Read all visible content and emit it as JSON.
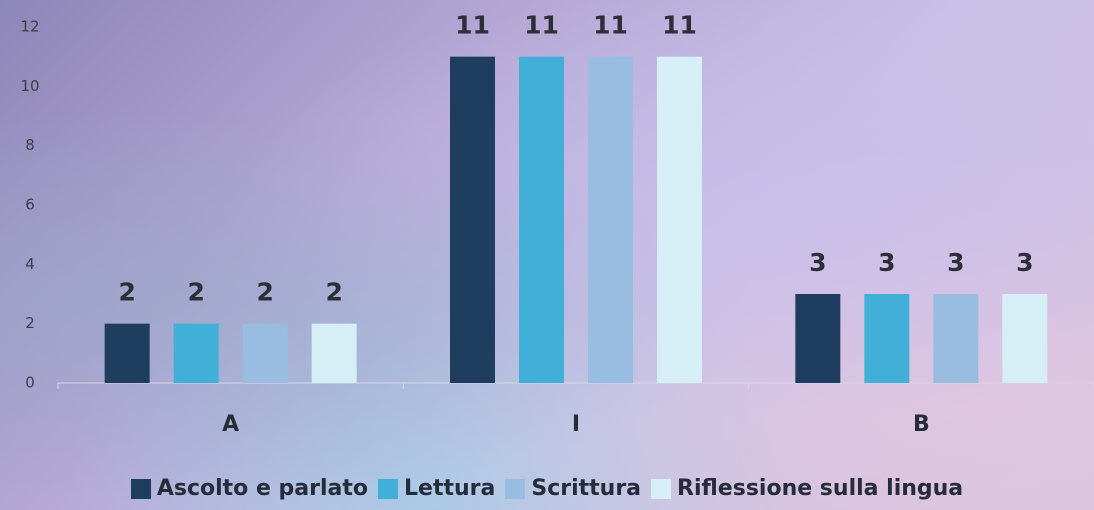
{
  "chart_data": {
    "type": "bar",
    "categories": [
      "A",
      "I",
      "B"
    ],
    "series": [
      {
        "name": "Ascolto e parlato",
        "color": "#1f3d5f",
        "values": [
          2,
          11,
          3
        ]
      },
      {
        "name": "Lettura",
        "color": "#41afd8",
        "values": [
          2,
          11,
          3
        ]
      },
      {
        "name": "Scrittura",
        "color": "#98bde0",
        "values": [
          2,
          11,
          3
        ]
      },
      {
        "name": "Riflessione sulla lingua",
        "color": "#d6eef5",
        "values": [
          2,
          11,
          3
        ]
      }
    ],
    "ylim": [
      0,
      12
    ],
    "yticks": [
      0,
      2,
      4,
      6,
      8,
      10,
      12
    ],
    "grid": false,
    "legend": "bottom"
  }
}
